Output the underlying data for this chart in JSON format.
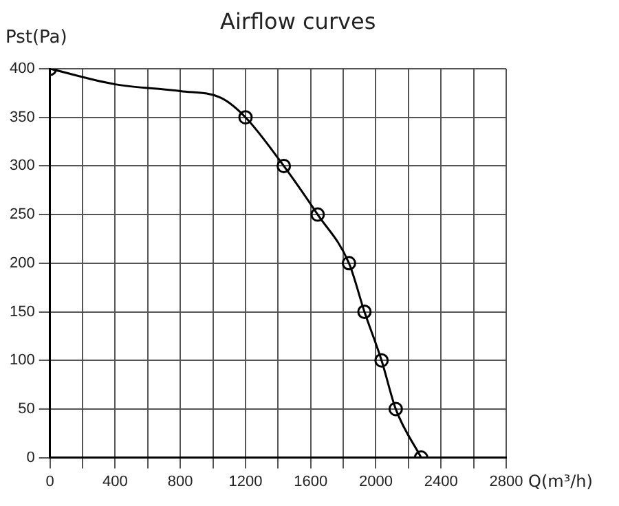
{
  "chart_data": {
    "type": "line",
    "title": "Airflow curves",
    "xlabel": "Q(m³/h)",
    "ylabel": "Pst(Pa)",
    "series": [
      {
        "type": "line",
        "color": "#000000",
        "marker": "none",
        "x": [
          0,
          400,
          800,
          1050,
          1200,
          1435,
          1643,
          1835,
          1930,
          2035,
          2122,
          2278
        ],
        "values": [
          400,
          384,
          377,
          370,
          350,
          300,
          250,
          200,
          150,
          100,
          50,
          0
        ]
      },
      {
        "type": "scatter",
        "color": "#000000",
        "marker": "circle",
        "x": [
          0,
          1200,
          1435,
          1643,
          1835,
          1930,
          2035,
          2122,
          2278
        ],
        "values": [
          400,
          350,
          300,
          250,
          200,
          150,
          100,
          50,
          0
        ]
      }
    ],
    "xlim": [
      0,
      2800
    ],
    "xticks": [
      0,
      {
        "value": 200,
        "label": null
      },
      400,
      {
        "value": 600,
        "label": null
      },
      800,
      {
        "value": 1000,
        "label": null
      },
      1200,
      {
        "value": 1400,
        "label": null
      },
      1600,
      {
        "value": 1800,
        "label": null
      },
      2000,
      {
        "value": 2200,
        "label": null
      },
      2400,
      {
        "value": 2600,
        "label": null
      },
      2800
    ],
    "ylim": [
      0,
      400
    ],
    "yticks": [
      0,
      50,
      100,
      150,
      200,
      250,
      300,
      350,
      400
    ],
    "grid": true,
    "legend": false
  }
}
